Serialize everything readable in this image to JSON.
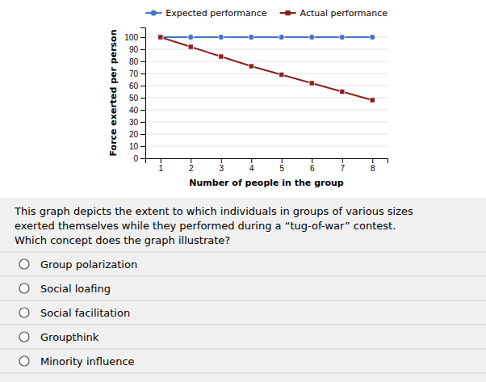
{
  "chart_data": {
    "type": "line",
    "xlabel": "Number of people in the group",
    "ylabel": "Force exerted per person",
    "x": [
      1,
      2,
      3,
      4,
      5,
      6,
      7,
      8
    ],
    "series": [
      {
        "name": "Expected performance",
        "color": "#4472C4",
        "marker": "circle",
        "values": [
          100,
          100,
          100,
          100,
          100,
          100,
          100,
          100
        ]
      },
      {
        "name": "Actual performance",
        "color": "#8B2020",
        "marker": "square",
        "values": [
          100,
          92,
          84,
          76,
          69,
          62,
          55,
          48
        ]
      }
    ],
    "xlim": [
      0.5,
      8.5
    ],
    "xticks": [
      1,
      2,
      3,
      4,
      5,
      6,
      7,
      8
    ],
    "ylim": [
      0,
      108
    ],
    "yticks": [
      0,
      10,
      20,
      30,
      40,
      50,
      60,
      70,
      80,
      90,
      100
    ],
    "grid": "y",
    "legend": "top"
  },
  "text_lines": [
    "This graph depicts the extent to which individuals in groups of various sizes",
    "exerted themselves while they performed during a “tug-of-war” contest.",
    " Which concept does the graph illustrate?"
  ],
  "options": [
    "Group polarization",
    "Social loafing",
    "Social facilitation",
    "Groupthink",
    "Minority influence"
  ]
}
